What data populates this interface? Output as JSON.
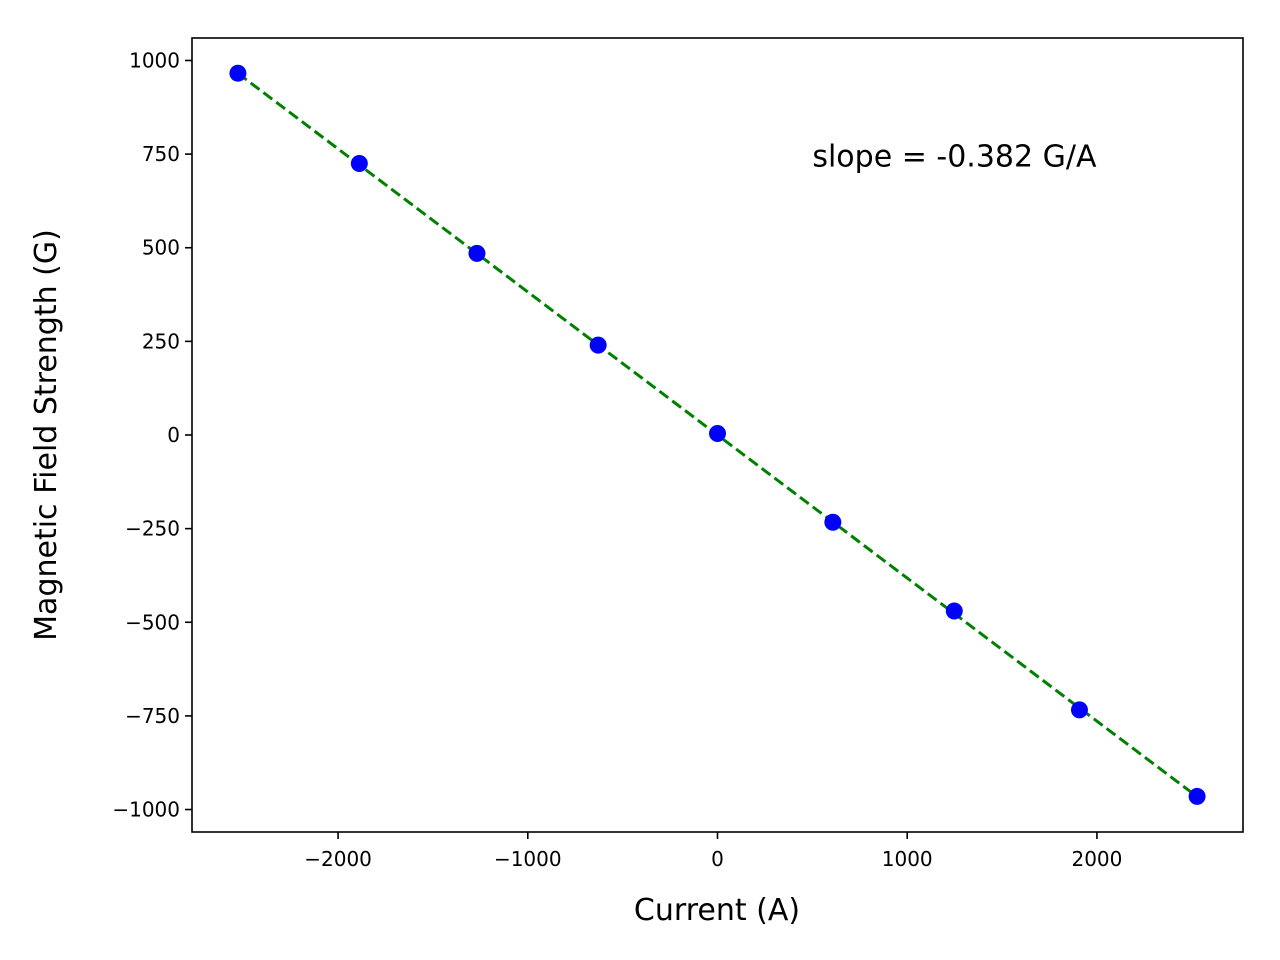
{
  "chart_data": {
    "type": "scatter",
    "title": "",
    "xlabel": "Current (A)",
    "ylabel": "Magnetic Field Strength (G)",
    "xlim": [
      -2770,
      2770
    ],
    "ylim": [
      -1060,
      1060
    ],
    "xticks": [
      -2000,
      -1000,
      0,
      1000,
      2000
    ],
    "yticks": [
      1000,
      750,
      500,
      250,
      0,
      -250,
      -500,
      -750,
      -1000
    ],
    "xtick_labels": [
      "−2000",
      "−1000",
      "0",
      "1000",
      "2000"
    ],
    "ytick_labels": [
      "1000",
      "750",
      "500",
      "250",
      "0",
      "−250",
      "−500",
      "−750",
      "−1000"
    ],
    "grid": false,
    "series": [
      {
        "kind": "scatter",
        "color": "#0000ff",
        "x": [
          -2528,
          -1888,
          -1268,
          -629,
          0,
          608,
          1248,
          1908,
          2528
        ],
        "y": [
          966,
          725,
          485,
          240,
          4,
          -233,
          -470,
          -734,
          -965
        ]
      },
      {
        "kind": "fit-line",
        "style": "dashed",
        "color": "#008000",
        "slope": -0.382,
        "intercept": 0,
        "x_range": [
          -2528,
          2528
        ]
      }
    ],
    "annotations": [
      {
        "text": "slope = -0.382 G/A",
        "x": 500,
        "y": 730
      }
    ]
  }
}
